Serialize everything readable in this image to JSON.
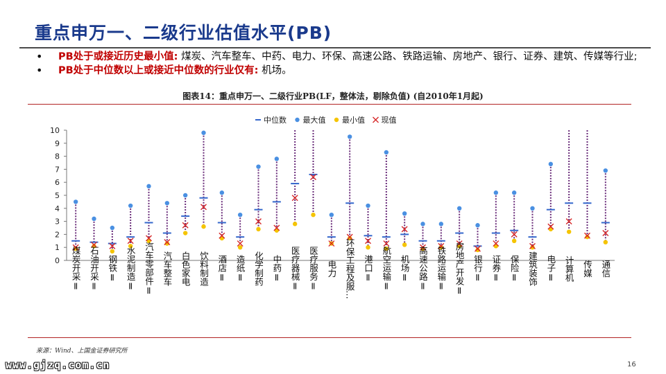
{
  "page": {
    "title": "重点申万一、二级行业估值水平(PB)",
    "bullets": [
      {
        "bullet": "•",
        "highlight": "PB处于或接近历史最小值:",
        "text": "煤炭、汽车整车、中药、电力、环保、高速公路、铁路运输、房地产、银行、证券、建筑、传媒等行业;"
      },
      {
        "bullet": "•",
        "highlight": "PB处于中位数以上或接近中位数的行业仅有:",
        "text": "机场。"
      }
    ],
    "figure_title": "图表14：重点申万一、二级行业PB(LF，整体法，剔除负值) (自2010年1月起)",
    "source": "来源：Wind、上国金证券研究所",
    "watermark": "www.gjzq.com.cn",
    "page_number": "16"
  },
  "chart_data": {
    "type": "scatter",
    "categories": [
      "煤炭开采Ⅱ",
      "石油开采Ⅱ",
      "钢铁Ⅱ",
      "水泥制造Ⅱ",
      "汽车零部件Ⅱ",
      "汽车整车",
      "白色家电",
      "饮料制造",
      "酒店Ⅱ",
      "造纸Ⅱ",
      "化学制药",
      "中药Ⅱ",
      "医疗器械Ⅱ",
      "医疗服务Ⅱ",
      "电力",
      "环保工程及服…",
      "港口Ⅱ",
      "航空运输Ⅱ",
      "机场Ⅱ",
      "高速公路Ⅱ",
      "铁路运输Ⅱ",
      "房地产开发Ⅱ",
      "银行Ⅱ",
      "证券Ⅱ",
      "保险Ⅱ",
      "建筑装饰",
      "电子Ⅱ",
      "计算机",
      "传媒",
      "通信"
    ],
    "legend": [
      {
        "key": "median",
        "label": "中位数",
        "color": "#3366cc",
        "icon": "dash-icon"
      },
      {
        "key": "max",
        "label": "最大值",
        "color": "#4a90e2",
        "icon": "dot-icon"
      },
      {
        "key": "min",
        "label": "最小值",
        "color": "#f5c400",
        "icon": "dot-icon"
      },
      {
        "key": "current",
        "label": "现值",
        "color": "#d62728",
        "icon": "cross-icon"
      }
    ],
    "series": [
      {
        "key": "max",
        "values": [
          4.5,
          3.2,
          2.5,
          4.2,
          5.7,
          4.4,
          5.0,
          9.8,
          5.2,
          3.5,
          7.2,
          7.8,
          null,
          null,
          3.5,
          9.5,
          4.2,
          8.3,
          3.6,
          2.8,
          2.8,
          4.0,
          2.7,
          5.2,
          5.2,
          4.0,
          7.4,
          null,
          null,
          6.9
        ]
      },
      {
        "key": "min",
        "values": [
          0.9,
          1.1,
          0.7,
          1.1,
          1.5,
          1.3,
          2.1,
          2.6,
          1.7,
          1.0,
          2.4,
          2.3,
          2.8,
          3.5,
          1.3,
          1.7,
          1.0,
          0.9,
          1.2,
          0.9,
          1.0,
          1.1,
          0.8,
          1.1,
          1.5,
          1.0,
          2.4,
          2.2,
          1.8,
          1.4
        ]
      },
      {
        "key": "median",
        "values": [
          1.5,
          1.4,
          1.3,
          1.8,
          2.9,
          2.1,
          3.4,
          4.8,
          2.9,
          1.8,
          3.9,
          4.5,
          5.9,
          6.6,
          1.8,
          4.4,
          1.9,
          1.8,
          2.0,
          1.5,
          1.5,
          2.1,
          1.1,
          2.1,
          2.3,
          1.8,
          3.9,
          4.4,
          4.4,
          2.9
        ]
      },
      {
        "key": "current",
        "values": [
          1.0,
          1.2,
          1.1,
          1.5,
          1.7,
          1.4,
          2.7,
          4.1,
          1.9,
          1.3,
          3.0,
          2.5,
          4.8,
          6.4,
          1.3,
          1.8,
          1.5,
          1.3,
          2.4,
          1.0,
          1.1,
          1.3,
          0.9,
          1.3,
          2.0,
          1.1,
          2.6,
          3.0,
          1.9,
          2.1
        ]
      }
    ],
    "ylim": [
      0,
      10
    ],
    "yticks": [
      0,
      1,
      2,
      3,
      4,
      5,
      6,
      7,
      8,
      9,
      10
    ],
    "grid": false,
    "legend_position": "top"
  }
}
